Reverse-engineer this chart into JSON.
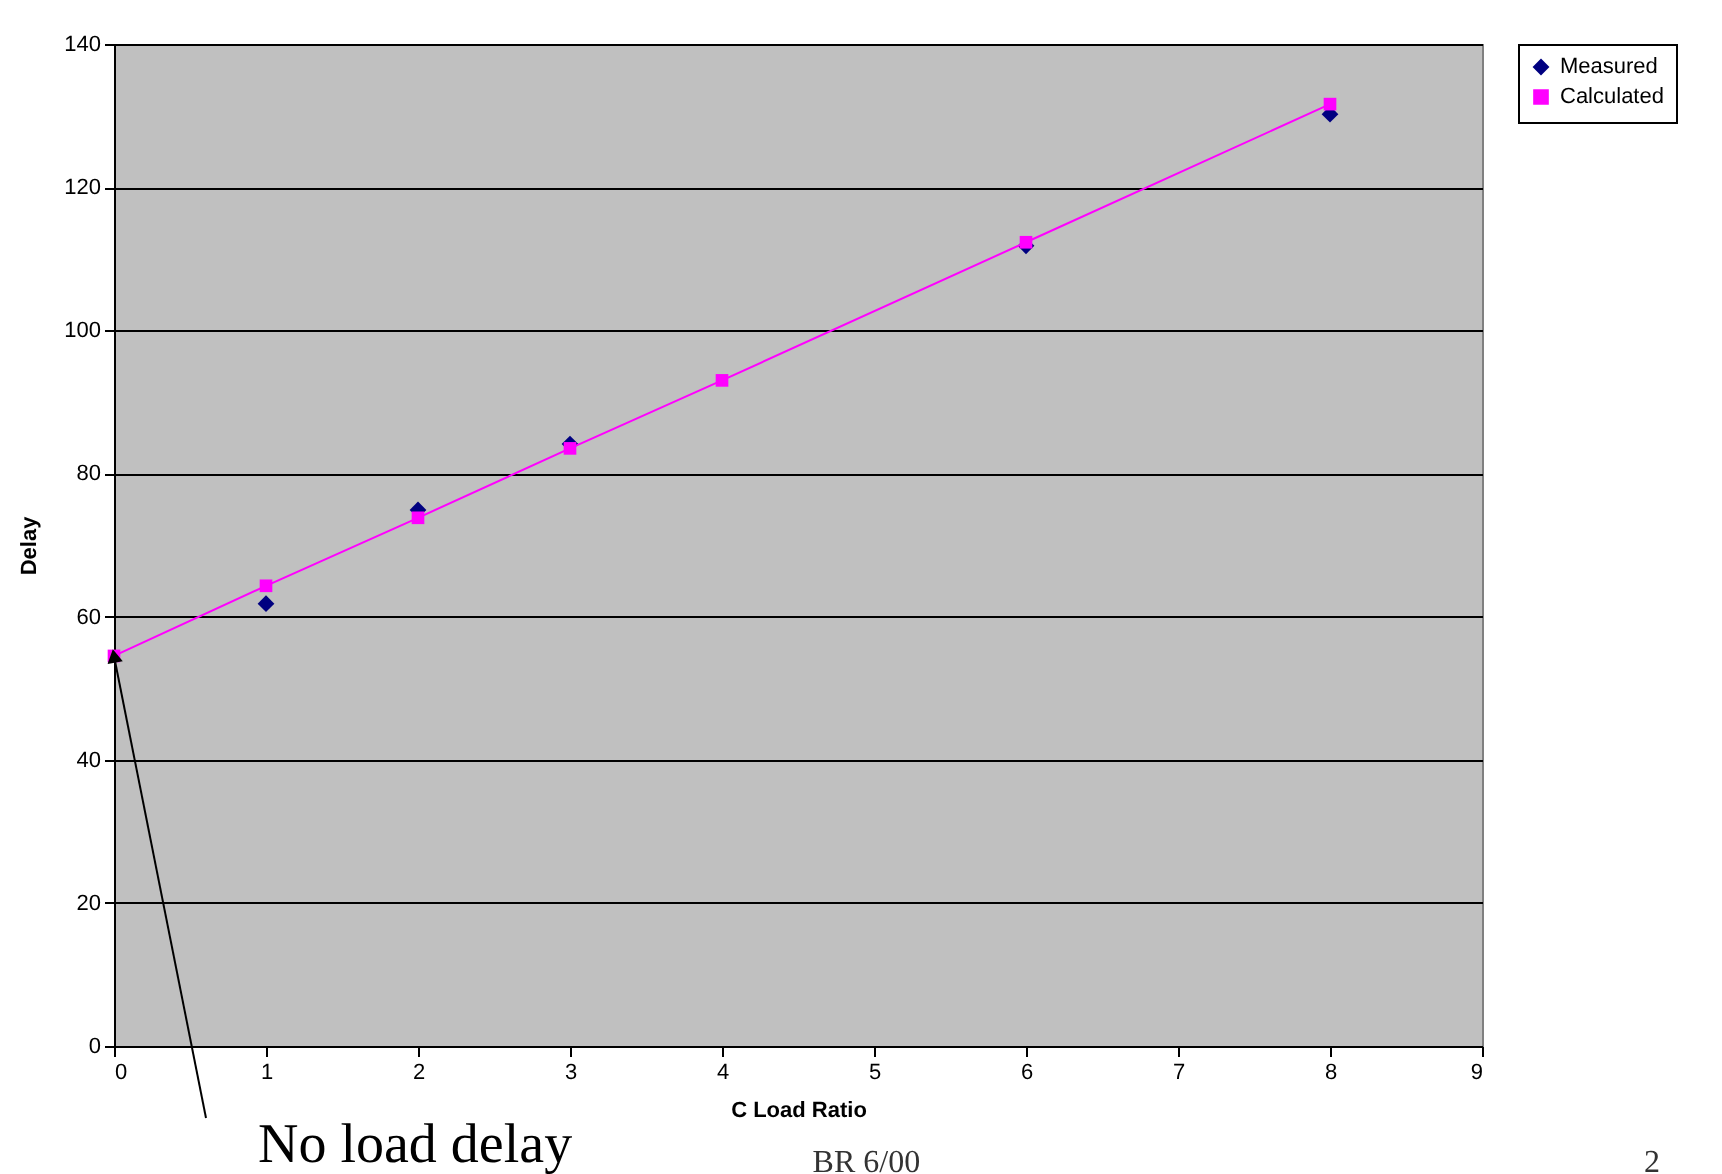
{
  "chart_data": {
    "type": "line",
    "xlabel": "C Load Ratio",
    "ylabel": "Delay",
    "series": [
      {
        "name": "Measured",
        "type": "scatter",
        "marker": "diamond",
        "color": "#000080",
        "x": [
          1,
          2,
          3,
          4,
          6,
          8
        ],
        "values": [
          61.8,
          74.9,
          84.1,
          null,
          111.8,
          130.2
        ]
      },
      {
        "name": "Calculated",
        "marker": "square",
        "line_style": "solid",
        "color": "#ff00ff",
        "x": [
          0,
          1,
          2,
          3,
          4,
          6,
          8
        ],
        "values": [
          54.5,
          64.3,
          73.8,
          83.5,
          93,
          112.3,
          131.6
        ]
      }
    ],
    "xlim": [
      0,
      9
    ],
    "xticks": [
      0,
      1,
      2,
      3,
      4,
      5,
      6,
      7,
      8,
      9
    ],
    "ylim": [
      0,
      140
    ],
    "yticks": [
      0,
      20,
      40,
      60,
      80,
      100,
      120,
      140
    ],
    "grid": "y",
    "legend": "right",
    "annotations": [
      {
        "text": "No load delay",
        "x": 0,
        "y": 54.5
      },
      "BR 6/00",
      "2"
    ]
  }
}
